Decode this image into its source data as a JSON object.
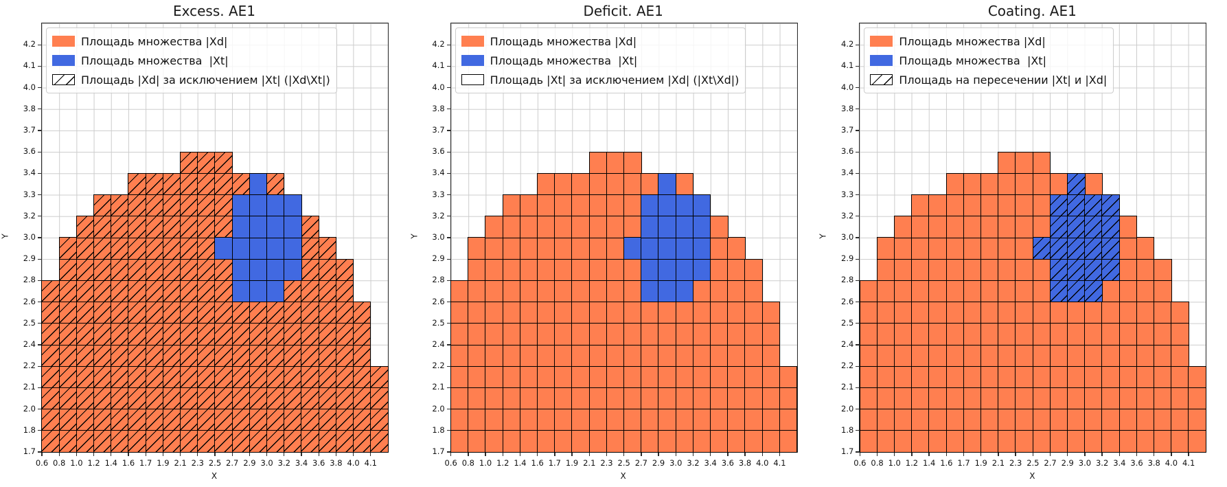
{
  "chart_data": {
    "type": "heatmap",
    "x_label": "X",
    "y_label": "Y",
    "x_ticks": [
      "0.6",
      "0.8",
      "1.0",
      "1.2",
      "1.4",
      "1.6",
      "1.7",
      "1.9",
      "2.1",
      "2.3",
      "2.5",
      "2.7",
      "2.9",
      "3.0",
      "3.2",
      "3.4",
      "3.6",
      "3.8",
      "4.0",
      "4.1"
    ],
    "y_ticks": [
      "1.7",
      "1.8",
      "2.0",
      "2.1",
      "2.2",
      "2.4",
      "2.5",
      "2.6",
      "2.8",
      "2.9",
      "3.0",
      "3.2",
      "3.3",
      "3.4",
      "3.6",
      "3.7",
      "3.8",
      "4.0",
      "4.1",
      "4.2"
    ],
    "grid": {
      "cols": 20,
      "rows": 20
    },
    "colors": {
      "xd": "#FF7F50",
      "xt": "#4169E1",
      "grid_line": "#cccccc",
      "cell_edge": "#000000",
      "spine": "#2b2b2b"
    },
    "regions": {
      "xd_rows": [
        {
          "row": 0,
          "from": 0,
          "to": 19
        },
        {
          "row": 1,
          "from": 0,
          "to": 19
        },
        {
          "row": 2,
          "from": 0,
          "to": 19
        },
        {
          "row": 3,
          "from": 0,
          "to": 19
        },
        {
          "row": 4,
          "from": 0,
          "to": 18
        },
        {
          "row": 5,
          "from": 0,
          "to": 18
        },
        {
          "row": 6,
          "from": 0,
          "to": 18
        },
        {
          "row": 7,
          "from": 0,
          "to": 17
        },
        {
          "row": 8,
          "from": 1,
          "to": 17
        },
        {
          "row": 9,
          "from": 1,
          "to": 16
        },
        {
          "row": 10,
          "from": 2,
          "to": 15
        },
        {
          "row": 11,
          "from": 3,
          "to": 14
        },
        {
          "row": 12,
          "from": 5,
          "to": 13
        },
        {
          "row": 13,
          "from": 8,
          "to": 10
        }
      ],
      "xt_rows": [
        {
          "row": 7,
          "from": 11,
          "to": 13
        },
        {
          "row": 8,
          "from": 11,
          "to": 14
        },
        {
          "row": 9,
          "from": 10,
          "to": 14
        },
        {
          "row": 10,
          "from": 11,
          "to": 14
        },
        {
          "row": 11,
          "from": 11,
          "to": 14
        },
        {
          "row": 12,
          "from": 12,
          "to": 12
        }
      ]
    },
    "panels": [
      {
        "title": "Excess. AE1",
        "hatch_target": "xd",
        "legend": [
          {
            "swatch": "xd",
            "hatched": false,
            "label": "Площадь множества |Xd|"
          },
          {
            "swatch": "xt",
            "hatched": false,
            "label": "Площадь множества  |Xt|"
          },
          {
            "swatch": "hatch",
            "hatched": true,
            "label": "Площадь |Xd| за исключением |Xt| (|Xd\\Xt|)"
          }
        ]
      },
      {
        "title": "Deficit. AE1",
        "hatch_target": "none",
        "legend": [
          {
            "swatch": "xd",
            "hatched": false,
            "label": "Площадь множества |Xd|"
          },
          {
            "swatch": "xt",
            "hatched": false,
            "label": "Площадь множества  |Xt|"
          },
          {
            "swatch": "hatch",
            "hatched": false,
            "label": "Площадь |Xt| за исключением |Xd| (|Xt\\Xd|)"
          }
        ]
      },
      {
        "title": "Coating. AE1",
        "hatch_target": "xt",
        "legend": [
          {
            "swatch": "xd",
            "hatched": false,
            "label": "Площадь множества |Xd|"
          },
          {
            "swatch": "xt",
            "hatched": false,
            "label": "Площадь множества  |Xt|"
          },
          {
            "swatch": "hatch",
            "hatched": true,
            "label": "Площадь на пересечении |Xt| и |Xd|"
          }
        ]
      }
    ]
  }
}
